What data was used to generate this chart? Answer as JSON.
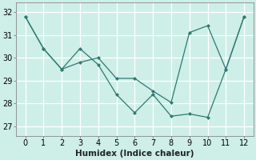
{
  "line1_x": [
    0,
    1,
    2,
    3,
    4,
    5,
    6,
    7,
    8,
    9,
    10,
    11,
    12
  ],
  "line1_y": [
    31.8,
    30.4,
    29.5,
    30.4,
    29.7,
    28.4,
    27.6,
    28.4,
    27.45,
    27.55,
    27.4,
    29.5,
    31.8
  ],
  "line2_x": [
    0,
    1,
    2,
    3,
    4,
    5,
    6,
    7,
    8,
    9,
    10,
    11,
    12
  ],
  "line2_y": [
    31.8,
    30.4,
    29.5,
    29.8,
    30.0,
    29.1,
    29.1,
    28.55,
    28.05,
    31.1,
    31.4,
    29.5,
    31.8
  ],
  "color": "#2d7a72",
  "bg_color": "#ceeee8",
  "grid_major_color": "#ffffff",
  "grid_minor_color": "#ddf5f0",
  "xlabel": "Humidex (Indice chaleur)",
  "ylim": [
    26.6,
    32.4
  ],
  "xlim": [
    -0.5,
    12.5
  ],
  "yticks": [
    27,
    28,
    29,
    30,
    31,
    32
  ],
  "xticks": [
    0,
    1,
    2,
    3,
    4,
    5,
    6,
    7,
    8,
    9,
    10,
    11,
    12
  ],
  "xlabel_fontsize": 7.5,
  "tick_fontsize": 7
}
